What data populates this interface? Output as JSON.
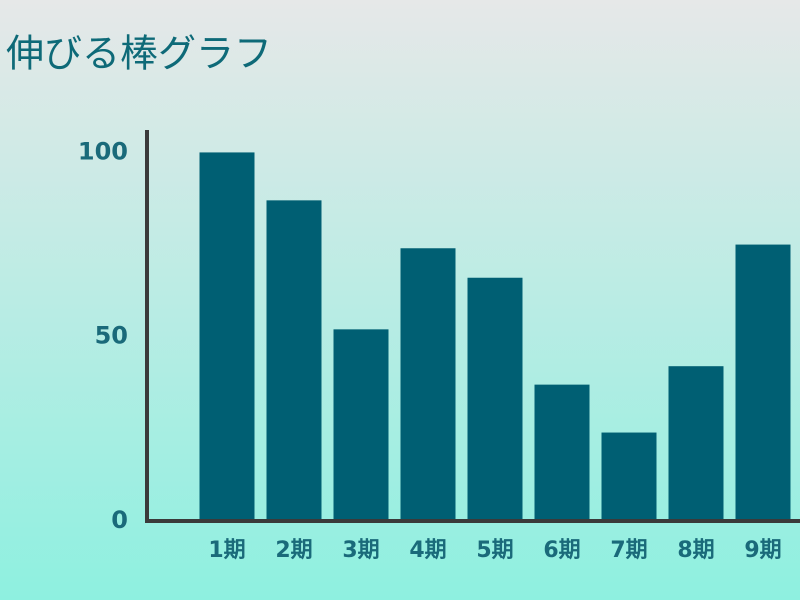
{
  "chart_data": {
    "type": "bar",
    "title": "伸びる棒グラフ",
    "categories": [
      "1期",
      "2期",
      "3期",
      "4期",
      "5期",
      "6期",
      "7期",
      "8期",
      "9期"
    ],
    "values": [
      100,
      87,
      52,
      74,
      66,
      37,
      24,
      42,
      75
    ],
    "color": "#005f73",
    "ylim": [
      0,
      105
    ],
    "yticks": [
      0,
      50,
      100
    ],
    "grid": false
  }
}
